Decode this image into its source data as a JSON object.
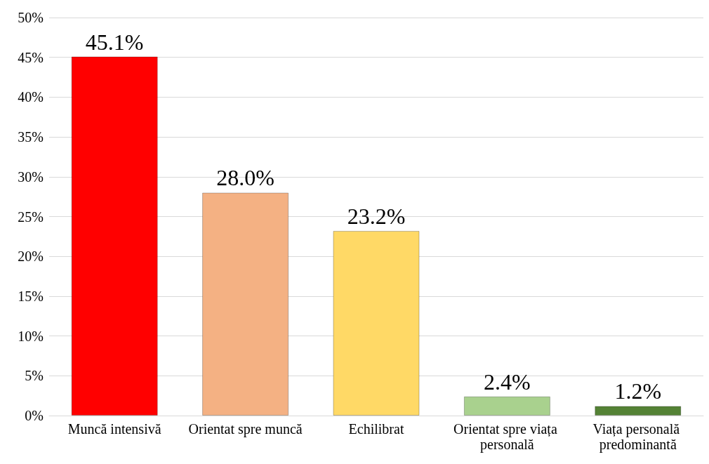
{
  "chart_data": {
    "type": "bar",
    "categories": [
      "Muncă intensivă",
      "Orientat spre muncă",
      "Echilibrat",
      "Orientat spre viața personală",
      "Viața personală predominantă"
    ],
    "values": [
      45.1,
      28.0,
      23.2,
      2.4,
      1.2
    ],
    "colors": [
      "#ff0000",
      "#f4b183",
      "#ffd966",
      "#a9d18e",
      "#548235"
    ],
    "value_labels": [
      "45.1%",
      "28.0%",
      "23.2%",
      "2.4%",
      "1.2%"
    ],
    "ylim": [
      0,
      50
    ],
    "yticks": [
      {
        "value": 0,
        "label": "0%"
      },
      {
        "value": 5,
        "label": "5%"
      },
      {
        "value": 10,
        "label": "10%"
      },
      {
        "value": 15,
        "label": "15%"
      },
      {
        "value": 20,
        "label": "20%"
      },
      {
        "value": 25,
        "label": "25%"
      },
      {
        "value": 30,
        "label": "30%"
      },
      {
        "value": 35,
        "label": "35%"
      },
      {
        "value": 40,
        "label": "40%"
      },
      {
        "value": 45,
        "label": "45%"
      },
      {
        "value": 50,
        "label": "50%"
      }
    ],
    "grid": true
  }
}
